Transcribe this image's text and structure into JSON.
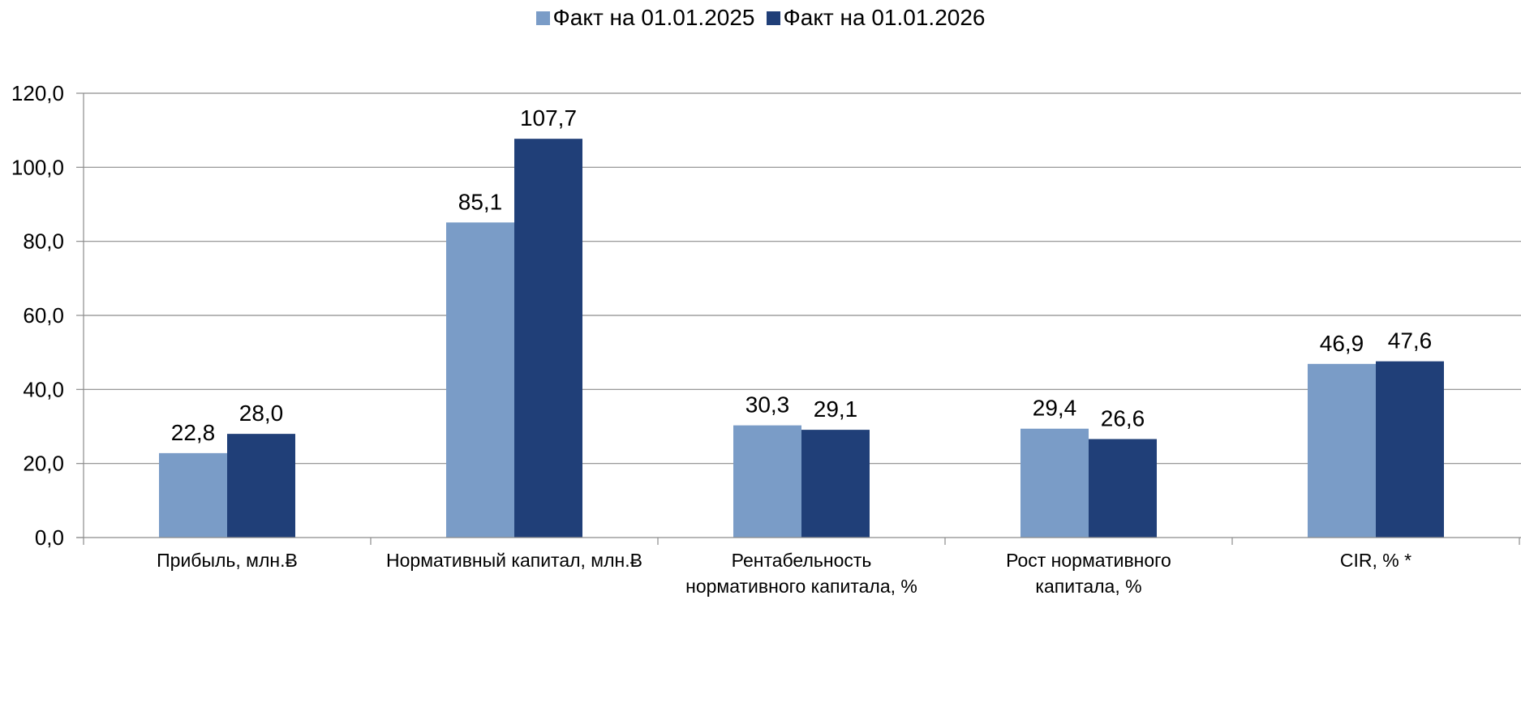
{
  "chart_data": {
    "type": "bar",
    "title": "",
    "xlabel": "",
    "ylabel": "",
    "categories": [
      [
        "Прибыль, млн.Ƀ"
      ],
      [
        "Нормативный капитал, млн.Ƀ"
      ],
      [
        "Рентабельность",
        "нормативного капитала, %"
      ],
      [
        "Рост нормативного",
        "капитала, %"
      ],
      [
        "CIR, % *"
      ]
    ],
    "series": [
      {
        "name": "Факт на 01.01.2025",
        "color": "#7a9cc7",
        "values": [
          22.8,
          85.1,
          30.3,
          29.4,
          46.9
        ],
        "labels": [
          "22,8",
          "85,1",
          "30,3",
          "29,4",
          "46,9"
        ]
      },
      {
        "name": "Факт на 01.01.2026",
        "color": "#203f78",
        "values": [
          28.0,
          107.7,
          29.1,
          26.6,
          47.6
        ],
        "labels": [
          "28,0",
          "107,7",
          "29,1",
          "26,6",
          "47,6"
        ]
      }
    ],
    "ylim": [
      0,
      120
    ],
    "yticks": [
      0,
      20,
      40,
      60,
      80,
      100,
      120
    ],
    "ytick_labels": [
      "0,0",
      "20,0",
      "40,0",
      "60,0",
      "80,0",
      "100,0",
      "120,0"
    ],
    "grid": true,
    "legend_position": "top-center"
  }
}
